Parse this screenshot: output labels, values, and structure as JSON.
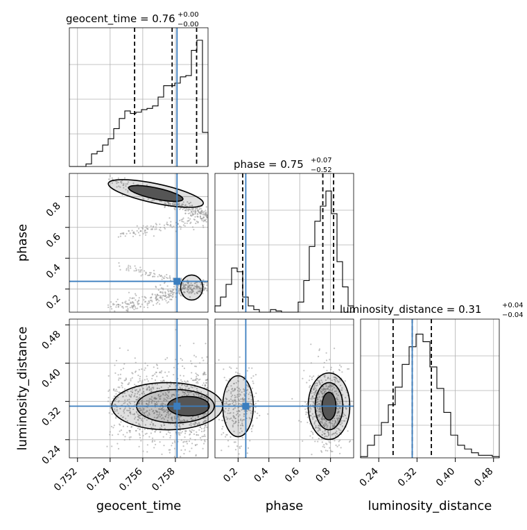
{
  "chart_data": {
    "type": "corner",
    "parameters": [
      "geocent_time",
      "phase",
      "luminosity_distance"
    ],
    "titles": [
      {
        "name": "geocent_time",
        "value": "0.76",
        "plus": "+0.00",
        "minus": "−0.00"
      },
      {
        "name": "phase",
        "value": "0.75",
        "plus": "+0.07",
        "minus": "−0.52"
      },
      {
        "name": "luminosity_distance",
        "value": "0.31",
        "plus": "+0.04",
        "minus": "−0.04"
      }
    ],
    "ranges": {
      "geocent_time": [
        0.7515,
        0.76
      ],
      "phase": [
        0.05,
        0.95
      ],
      "luminosity_distance": [
        0.202,
        0.492
      ]
    },
    "ticks": {
      "geocent_time": [
        "0.752",
        "0.754",
        "0.756",
        "0.758"
      ],
      "phase": [
        "0.2",
        "0.4",
        "0.6",
        "0.8"
      ],
      "luminosity_distance": [
        "0.24",
        "0.32",
        "0.40",
        "0.48"
      ]
    },
    "tick_values": {
      "geocent_time": [
        0.752,
        0.754,
        0.756,
        0.758
      ],
      "phase": [
        0.2,
        0.4,
        0.6,
        0.8
      ],
      "luminosity_distance": [
        0.24,
        0.32,
        0.4,
        0.48
      ]
    },
    "truths": {
      "geocent_time": 0.7581,
      "phase": 0.25,
      "luminosity_distance": 0.31
    },
    "quantiles": {
      "geocent_time": [
        0.7555,
        0.7578,
        0.7593
      ],
      "phase": [
        0.23,
        0.75,
        0.82
      ],
      "luminosity_distance": [
        0.27,
        0.31,
        0.35
      ]
    },
    "histograms": {
      "geocent_time": [
        0,
        0,
        0,
        0.02,
        0.1,
        0.12,
        0.17,
        0.22,
        0.3,
        0.38,
        0.44,
        0.42,
        0.43,
        0.45,
        0.46,
        0.48,
        0.55,
        0.64,
        0.64,
        0.66,
        0.71,
        0.72,
        0.92,
        1.0,
        0.27
      ],
      "phase": [
        0.05,
        0.12,
        0.22,
        0.35,
        0.32,
        0.12,
        0.05,
        0.02,
        0,
        0,
        0.02,
        0.01,
        0,
        0,
        0,
        0.08,
        0.25,
        0.52,
        0.72,
        0.84,
        0.96,
        0.78,
        0.4,
        0.2,
        0.05
      ],
      "luminosity_distance": [
        0.01,
        0.1,
        0.18,
        0.28,
        0.42,
        0.56,
        0.74,
        0.88,
        0.98,
        0.92,
        0.72,
        0.55,
        0.36,
        0.18,
        0.1,
        0.07,
        0.04,
        0.02,
        0.02,
        0.01
      ]
    },
    "grid": true,
    "colors": {
      "truth": "#3b7ebf",
      "hist": "#000000",
      "samples": "#9a9a9a"
    }
  }
}
